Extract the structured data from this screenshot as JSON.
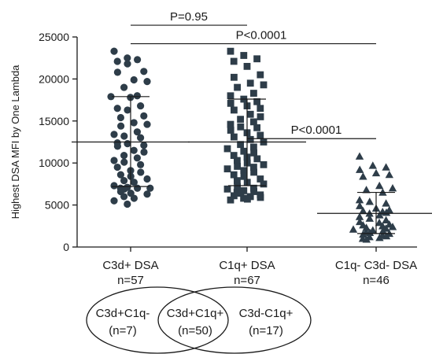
{
  "chart_data": {
    "type": "scatter",
    "ylabel": "Highest DSA MFI by One Lambda",
    "ylim": [
      0,
      25000
    ],
    "yticks": [
      0,
      5000,
      10000,
      15000,
      20000,
      25000
    ],
    "ytick_labels": [
      "0",
      "5000",
      "10000",
      "15000",
      "20000",
      "25000"
    ],
    "groups": [
      {
        "label": "C3d+ DSA",
        "n_label": "n=57",
        "marker": "circle",
        "mean": 12500,
        "sd_upper": 17900,
        "sd_lower": 7200,
        "values": [
          23300,
          22500,
          22300,
          22100,
          21800,
          20900,
          20800,
          19900,
          19700,
          19000,
          18000,
          17900,
          17800,
          16800,
          16500,
          16300,
          15600,
          15400,
          14800,
          14600,
          14400,
          13700,
          13400,
          13200,
          13000,
          12400,
          12300,
          12100,
          12000,
          11500,
          11300,
          10900,
          10600,
          10300,
          10100,
          9800,
          9500,
          9100,
          8900,
          8600,
          8400,
          8100,
          7900,
          7700,
          7300,
          7100,
          7000,
          7000,
          6900,
          7000,
          6600,
          6400,
          6300,
          6000,
          5800,
          5500,
          5100
        ]
      },
      {
        "label": "C1q+ DSA",
        "n_label": "n=67",
        "marker": "square",
        "mean": 12500,
        "sd_upper": 17600,
        "sd_lower": 7300,
        "values": [
          23300,
          22800,
          22400,
          22100,
          21500,
          20500,
          20200,
          19500,
          19300,
          19000,
          18300,
          18000,
          17600,
          17300,
          17100,
          16800,
          16500,
          16300,
          15800,
          15500,
          15200,
          14900,
          14600,
          14300,
          14200,
          13900,
          13600,
          13300,
          13100,
          12800,
          12500,
          12200,
          11900,
          11700,
          11400,
          11200,
          10900,
          10700,
          10500,
          10300,
          10000,
          9800,
          9600,
          9500,
          9300,
          9100,
          8900,
          8600,
          8400,
          8100,
          7900,
          7700,
          7500,
          7200,
          7000,
          6900,
          6700,
          6600,
          6500,
          6400,
          6200,
          6100,
          6000,
          5900,
          5800,
          5700,
          5600
        ]
      },
      {
        "label": "C1q- C3d- DSA",
        "n_label": "n=46",
        "marker": "triangle",
        "mean": 4000,
        "sd_upper": 6500,
        "sd_lower": 1600,
        "values": [
          10800,
          9700,
          9500,
          9200,
          8800,
          8600,
          8400,
          7300,
          7000,
          6800,
          6500,
          5600,
          5400,
          5200,
          4900,
          4600,
          4400,
          4300,
          4200,
          4100,
          4000,
          3800,
          3600,
          3400,
          3200,
          3000,
          2900,
          2700,
          2600,
          2500,
          2400,
          2300,
          2200,
          2100,
          2000,
          1900,
          1800,
          1700,
          1600,
          1500,
          1400,
          1300,
          1200,
          1100,
          1000,
          900
        ]
      }
    ],
    "comparisons": [
      {
        "from": 0,
        "to": 1,
        "y": 26400,
        "label": "P=0.95"
      },
      {
        "from": 0,
        "to": 2,
        "y": 24200,
        "label": "P<0.0001"
      },
      {
        "from": 1,
        "to": 2,
        "y": 12900,
        "label": "P<0.0001"
      }
    ],
    "point_color": "#2e3d49"
  },
  "venn": {
    "left_label": "C3d+C1q-",
    "left_n": "(n=7)",
    "center_label": "C3d+C1q+",
    "center_n": "(n=50)",
    "right_label": "C3d-C1q+",
    "right_n": "(n=17)"
  }
}
